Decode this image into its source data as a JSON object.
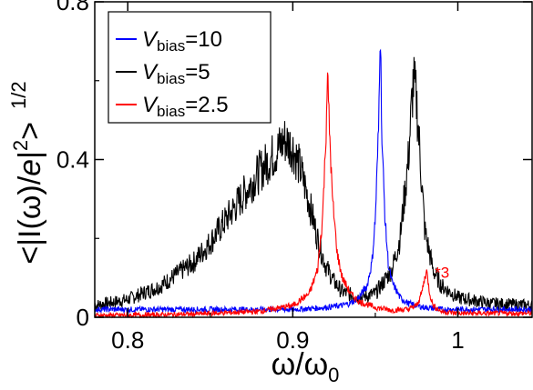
{
  "chart_data": {
    "type": "line",
    "xlabel": "ω/ω",
    "xlabel_sub": "0",
    "ylabel_left": "<|I(ω)/",
    "ylabel_italic": "e",
    "ylabel_right": "|",
    "ylabel_sup1": "2",
    "ylabel_close": ">",
    "ylabel_sup2": "1/2",
    "xlim": [
      0.78,
      1.045
    ],
    "ylim": [
      0,
      0.8
    ],
    "x_ticks": [
      0.8,
      0.9,
      1.0
    ],
    "x_tick_labels": [
      "0.8",
      "0.9",
      "1"
    ],
    "y_ticks": [
      0,
      0.4,
      0.8
    ],
    "y_tick_labels": [
      "0",
      "0.4",
      "0.8"
    ],
    "legend_placement": "top-left",
    "series": [
      {
        "name": "V",
        "name_sub": "bias",
        "name_suffix": "=10",
        "color": "#0000ff",
        "x": [
          0.78,
          0.8,
          0.82,
          0.84,
          0.86,
          0.88,
          0.9,
          0.91,
          0.92,
          0.93,
          0.935,
          0.94,
          0.945,
          0.948,
          0.95,
          0.952,
          0.953,
          0.954,
          0.956,
          0.958,
          0.96,
          0.965,
          0.97,
          0.98,
          0.99,
          1.0,
          1.02,
          1.045
        ],
        "y": [
          0.02,
          0.02,
          0.02,
          0.02,
          0.02,
          0.02,
          0.02,
          0.022,
          0.025,
          0.03,
          0.036,
          0.05,
          0.08,
          0.14,
          0.25,
          0.48,
          0.76,
          0.45,
          0.24,
          0.13,
          0.09,
          0.05,
          0.035,
          0.025,
          0.02,
          0.02,
          0.02,
          0.02
        ]
      },
      {
        "name": "V",
        "name_sub": "bias",
        "name_suffix": "=5",
        "color": "#000000",
        "x": [
          0.78,
          0.8,
          0.82,
          0.84,
          0.85,
          0.86,
          0.87,
          0.88,
          0.89,
          0.895,
          0.9,
          0.905,
          0.91,
          0.915,
          0.92,
          0.925,
          0.93,
          0.94,
          0.95,
          0.96,
          0.965,
          0.97,
          0.973,
          0.975,
          0.978,
          0.98,
          0.985,
          0.99,
          1.0,
          1.02,
          1.045
        ],
        "y": [
          0.03,
          0.045,
          0.08,
          0.14,
          0.19,
          0.25,
          0.31,
          0.37,
          0.42,
          0.45,
          0.43,
          0.37,
          0.29,
          0.2,
          0.13,
          0.09,
          0.065,
          0.05,
          0.06,
          0.12,
          0.2,
          0.4,
          0.6,
          0.55,
          0.35,
          0.22,
          0.12,
          0.08,
          0.05,
          0.035,
          0.03
        ]
      },
      {
        "name": "V",
        "name_sub": "bias",
        "name_suffix": "=2.5",
        "color": "#ff0000",
        "x": [
          0.78,
          0.8,
          0.84,
          0.88,
          0.9,
          0.91,
          0.915,
          0.918,
          0.92,
          0.921,
          0.922,
          0.924,
          0.927,
          0.93,
          0.935,
          0.94,
          0.95,
          0.96,
          0.97,
          0.975,
          0.978,
          0.981,
          0.983,
          0.985,
          0.99,
          1.0,
          1.045
        ],
        "y": [
          0.005,
          0.005,
          0.008,
          0.015,
          0.03,
          0.06,
          0.12,
          0.25,
          0.45,
          0.62,
          0.5,
          0.3,
          0.16,
          0.1,
          0.06,
          0.04,
          0.025,
          0.018,
          0.02,
          0.03,
          0.06,
          0.12,
          0.06,
          0.03,
          0.015,
          0.01,
          0.01
        ]
      }
    ],
    "annotation": {
      "text": "*3",
      "x": 0.986,
      "y": 0.1,
      "color": "#ff0000"
    }
  }
}
